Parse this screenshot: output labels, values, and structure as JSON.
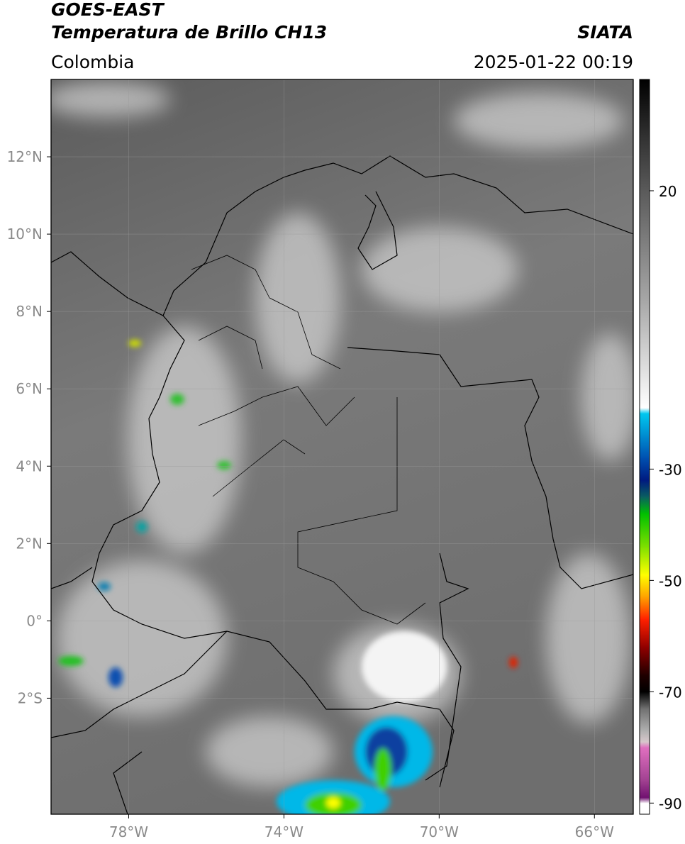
{
  "map": {
    "title": "GOES-EAST",
    "subtitle": "Temperatura de Brillo CH13",
    "source": "SIATA",
    "region": "Colombia",
    "timestamp": "2025-01-22 00:19",
    "xlim": [
      -80,
      -65
    ],
    "ylim": [
      -5,
      14
    ],
    "xticks": [
      {
        "value": -78,
        "label": "78°W"
      },
      {
        "value": -74,
        "label": "74°W"
      },
      {
        "value": -70,
        "label": "70°W"
      },
      {
        "value": -66,
        "label": "66°W"
      }
    ],
    "yticks": [
      {
        "value": 12,
        "label": "12°N"
      },
      {
        "value": 10,
        "label": "10°N"
      },
      {
        "value": 8,
        "label": "8°N"
      },
      {
        "value": 6,
        "label": "6°N"
      },
      {
        "value": 4,
        "label": "4°N"
      },
      {
        "value": 2,
        "label": "2°N"
      },
      {
        "value": 0,
        "label": "0°"
      },
      {
        "value": -2,
        "label": "2°S"
      }
    ],
    "grid": true,
    "colorbar": {
      "lim": [
        -92,
        40
      ],
      "ticks": [
        20,
        -30,
        -50,
        -70,
        -90
      ],
      "colormap": [
        {
          "value": 40,
          "color": "#000000"
        },
        {
          "value": 30,
          "color": "#303030"
        },
        {
          "value": 20,
          "color": "#5a5a5a"
        },
        {
          "value": 0,
          "color": "#a8a8a8"
        },
        {
          "value": -19,
          "color": "#ffffff"
        },
        {
          "value": -20,
          "color": "#00c8f0"
        },
        {
          "value": -28,
          "color": "#0050b0"
        },
        {
          "value": -32,
          "color": "#001a80"
        },
        {
          "value": -35,
          "color": "#0a6060"
        },
        {
          "value": -38,
          "color": "#00c000"
        },
        {
          "value": -44,
          "color": "#80e000"
        },
        {
          "value": -49,
          "color": "#ffff00"
        },
        {
          "value": -53,
          "color": "#ffa000"
        },
        {
          "value": -57,
          "color": "#ff2000"
        },
        {
          "value": -62,
          "color": "#900000"
        },
        {
          "value": -67,
          "color": "#200000"
        },
        {
          "value": -70,
          "color": "#000000"
        },
        {
          "value": -73,
          "color": "#707070"
        },
        {
          "value": -77,
          "color": "#b0b0b0"
        },
        {
          "value": -79,
          "color": "#d8c8cc"
        },
        {
          "value": -80,
          "color": "#e070c0"
        },
        {
          "value": -86,
          "color": "#a04090"
        },
        {
          "value": -89,
          "color": "#701070"
        },
        {
          "value": -90,
          "color": "#ffffff"
        },
        {
          "value": -92,
          "color": "#ffffff"
        }
      ]
    }
  }
}
